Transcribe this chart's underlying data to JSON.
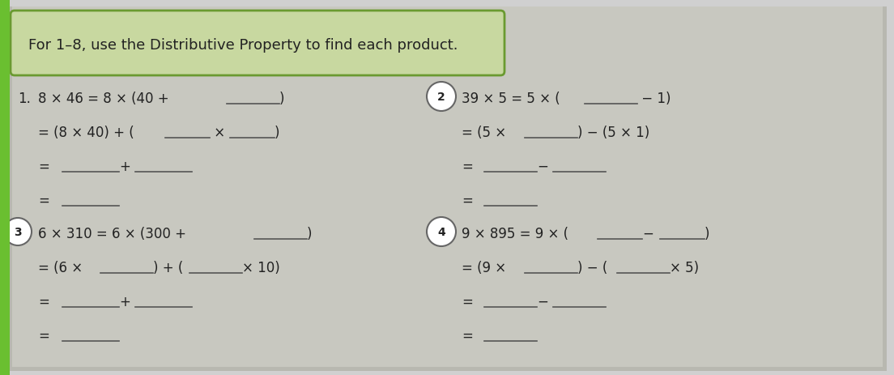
{
  "bg_color": "#d0d0d0",
  "page_color": "#c8c8c0",
  "header_box_color": "#c8d8a0",
  "header_box_edge": "#6a9a30",
  "header_text": "For 1–8, use the Distributive Property to find each product.",
  "header_fontsize": 13,
  "line_color": "#555555",
  "line_width": 1.2,
  "text_color": "#222222",
  "label_fontsize": 12,
  "green_border": "#6abf30"
}
